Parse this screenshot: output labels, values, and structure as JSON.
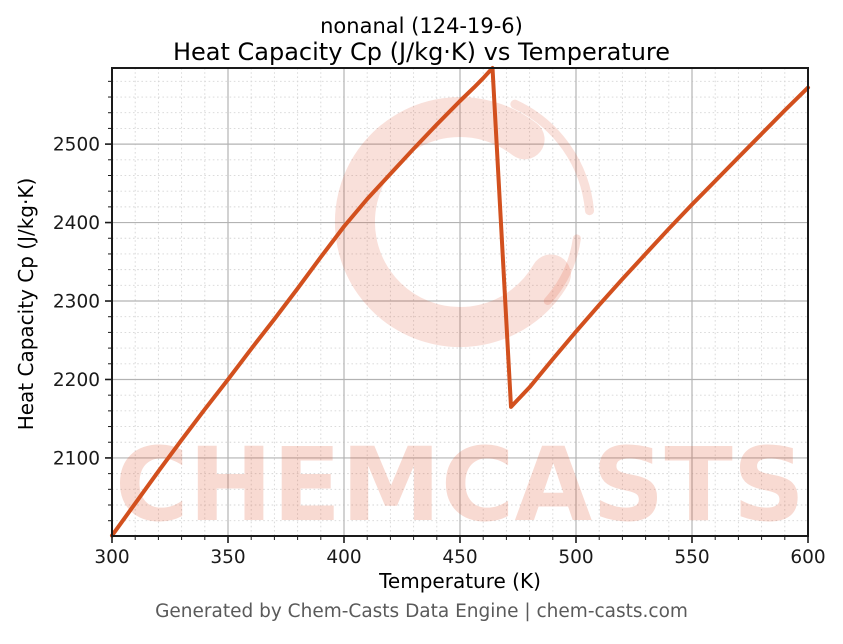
{
  "figure": {
    "title_line1": "nonanal (124-19-6)",
    "title_line2": "Heat Capacity Cp (J/kg·K) vs Temperature",
    "footer": "Generated by Chem-Casts Data Engine | chem-casts.com"
  },
  "watermark": {
    "text": "CHEMCASTS",
    "logo": "c-swirl-logo",
    "color": "#e05532",
    "logo_opacity": 0.18,
    "text_opacity": 0.22
  },
  "chart_data": {
    "type": "line",
    "title": "nonanal (124-19-6)\nHeat Capacity Cp (J/kg·K) vs Temperature",
    "xlabel": "Temperature (K)",
    "ylabel": "Heat Capacity Cp (J/kg·K)",
    "xlim": [
      300,
      600
    ],
    "ylim": [
      2000.5,
      2597
    ],
    "x_ticks": [
      300,
      350,
      400,
      450,
      500,
      550,
      600
    ],
    "y_ticks": [
      2100,
      2200,
      2300,
      2400,
      2500
    ],
    "x_minor_step": 10,
    "y_minor_step": 20,
    "grid": "major-solid, minor-dashed",
    "legend": "none",
    "line_color": "#d2501e",
    "line_width": 4,
    "series": [
      {
        "name": "Heat Capacity Cp",
        "x": [
          300,
          310,
          320,
          330,
          340,
          350,
          360,
          370,
          380,
          390,
          400,
          410,
          420,
          430,
          440,
          450,
          456,
          460,
          464,
          472,
          480,
          490,
          500,
          510,
          520,
          530,
          540,
          550,
          560,
          570,
          580,
          590,
          600
        ],
        "y": [
          2001,
          2042,
          2083,
          2123,
          2162,
          2200,
          2239,
          2277,
          2316,
          2356,
          2395,
          2430,
          2462,
          2494,
          2525,
          2555,
          2572,
          2584,
          2597,
          2165,
          2190,
          2226,
          2261,
          2295,
          2328,
          2360,
          2392,
          2423,
          2453,
          2483,
          2513,
          2543,
          2572
        ]
      }
    ],
    "features": {
      "start": {
        "x": 300,
        "y": 2001
      },
      "peak": {
        "x": 464,
        "y": 2597
      },
      "drop_to": {
        "x": 472,
        "y": 2165
      },
      "end": {
        "x": 600,
        "y": 2572
      }
    }
  }
}
